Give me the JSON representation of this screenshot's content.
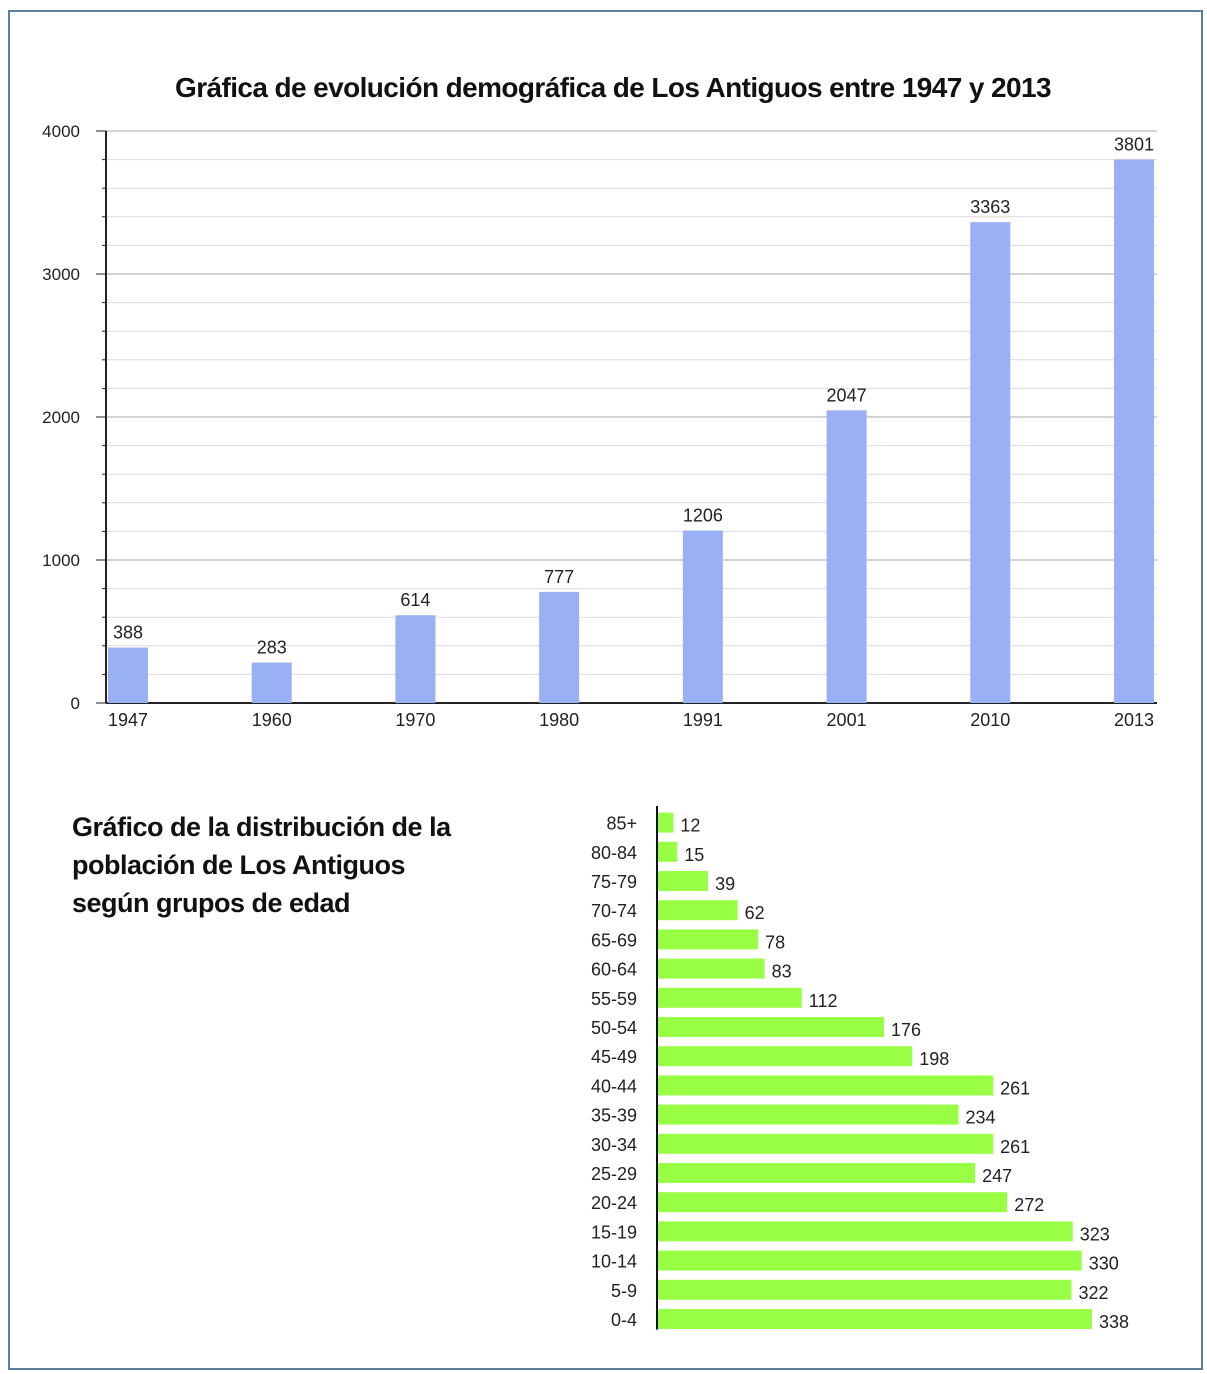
{
  "colors": {
    "bar_blue": "#99b0f5",
    "bar_green": "#99ff44",
    "frame": "#5b7f9e",
    "grid": "#c8c8c8",
    "axis": "#222222"
  },
  "chart_data": [
    {
      "type": "bar",
      "title": "Gráfica de evolución demográfica de Los Antiguos entre 1947 y 2013",
      "categories": [
        "1947",
        "1960",
        "1970",
        "1980",
        "1991",
        "2001",
        "2010",
        "2013"
      ],
      "values": [
        388,
        283,
        614,
        777,
        1206,
        2047,
        3363,
        3801
      ],
      "value_labels": [
        "388",
        "283",
        "614",
        "777",
        "1206",
        "2047",
        "3363",
        "3801"
      ],
      "ylim": [
        0,
        4000
      ],
      "yticks": [
        "0",
        "1000",
        "2000",
        "3000",
        "4000"
      ],
      "grid": true,
      "legend": "none"
    },
    {
      "type": "bar",
      "orientation": "horizontal",
      "title": "Gráfico de la distribución de la población de Los Antiguos según grupos de edad",
      "title_lines": [
        "Gráfico de la distribución de la",
        "población de Los Antiguos",
        "según grupos de edad"
      ],
      "categories": [
        "85+",
        "80-84",
        "75-79",
        "70-74",
        "65-69",
        "60-64",
        "55-59",
        "50-54",
        "45-49",
        "40-44",
        "35-39",
        "30-34",
        "25-29",
        "20-24",
        "15-19",
        "10-14",
        "5-9",
        "0-4"
      ],
      "values": [
        12,
        15,
        39,
        62,
        78,
        83,
        112,
        176,
        198,
        261,
        234,
        261,
        247,
        272,
        323,
        330,
        322,
        338
      ],
      "value_labels": [
        "12",
        "15",
        "39",
        "62",
        "78",
        "83",
        "112",
        "176",
        "198",
        "261",
        "234",
        "261",
        "247",
        "272",
        "323",
        "330",
        "322",
        "338"
      ],
      "grid": false,
      "legend": "none"
    }
  ]
}
